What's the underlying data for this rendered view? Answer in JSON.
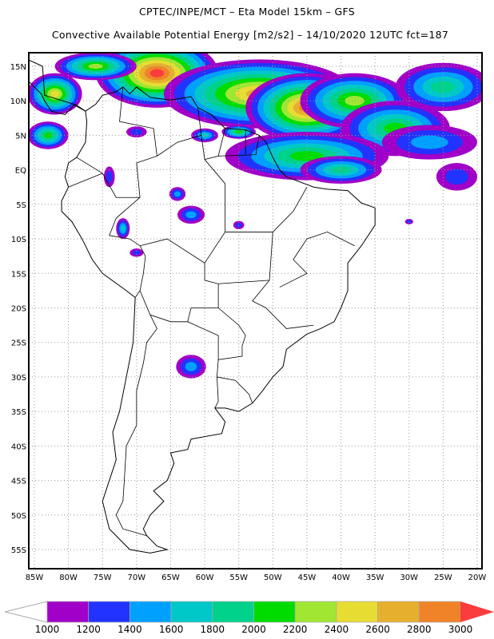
{
  "header": {
    "title": "CPTEC/INPE/MCT –  Eta Model 15km – GFS",
    "subtitle": "Convective Available Potential Energy [m2/s2] – 14/10/2020 12UTC fct=187"
  },
  "map": {
    "lat_labels": [
      "15N",
      "10N",
      "5N",
      "EQ",
      "5S",
      "10S",
      "15S",
      "20S",
      "25S",
      "30S",
      "35S",
      "40S",
      "45S",
      "50S",
      "55S"
    ],
    "lat_values": [
      15,
      10,
      5,
      0,
      -5,
      -10,
      -15,
      -20,
      -25,
      -30,
      -35,
      -40,
      -45,
      -50,
      -55
    ],
    "lon_labels": [
      "85W",
      "80W",
      "75W",
      "70W",
      "65W",
      "60W",
      "55W",
      "50W",
      "45W",
      "40W",
      "35W",
      "30W",
      "25W",
      "20W"
    ],
    "lon_values": [
      -85,
      -80,
      -75,
      -70,
      -65,
      -60,
      -55,
      -50,
      -45,
      -40,
      -35,
      -30,
      -25,
      -20
    ]
  },
  "colorbar": {
    "labels": [
      "1000",
      "1200",
      "1400",
      "1600",
      "1800",
      "2000",
      "2200",
      "2400",
      "2600",
      "2800",
      "3000"
    ],
    "colors": [
      "#a000c8",
      "#2233ff",
      "#00a0ff",
      "#00c8c8",
      "#00d28c",
      "#00dc00",
      "#a0e632",
      "#e6dc32",
      "#e6af2d",
      "#f08228",
      "#fa3c3c"
    ]
  }
}
